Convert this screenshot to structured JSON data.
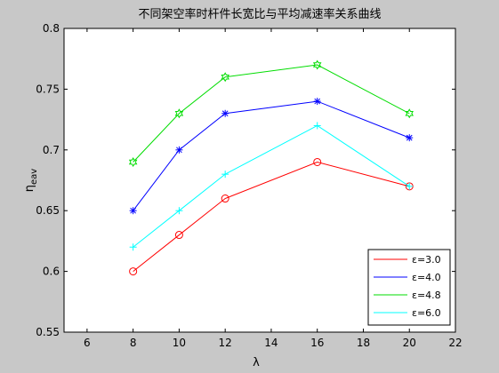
{
  "chart_data": {
    "type": "line",
    "title": "不同架空率时杆件长宽比与平均减速率关系曲线",
    "xlabel": "λ",
    "ylabel": "η",
    "ylabel_sub": "eav",
    "xlim": [
      5,
      22
    ],
    "ylim": [
      0.55,
      0.8
    ],
    "xticks": [
      "6",
      "8",
      "10",
      "12",
      "14",
      "16",
      "18",
      "20",
      "22"
    ],
    "yticks": [
      "0.55",
      "0.6",
      "0.65",
      "0.7",
      "0.75",
      "0.8"
    ],
    "x": [
      8,
      10,
      12,
      16,
      20
    ],
    "grid": false,
    "legend_position": "bottom-right",
    "series": [
      {
        "name": "ε=3.0",
        "color": "#ff0000",
        "marker": "circle",
        "values": [
          0.6,
          0.63,
          0.66,
          0.69,
          0.67
        ]
      },
      {
        "name": "ε=4.0",
        "color": "#0000ff",
        "marker": "asterisk",
        "values": [
          0.65,
          0.7,
          0.73,
          0.74,
          0.71
        ]
      },
      {
        "name": "ε=4.8",
        "color": "#00dd00",
        "marker": "hexagram",
        "values": [
          0.69,
          0.73,
          0.76,
          0.77,
          0.73
        ]
      },
      {
        "name": "ε=6.0",
        "color": "#00ffff",
        "marker": "plus",
        "values": [
          0.62,
          0.65,
          0.68,
          0.72,
          0.67
        ]
      }
    ]
  }
}
